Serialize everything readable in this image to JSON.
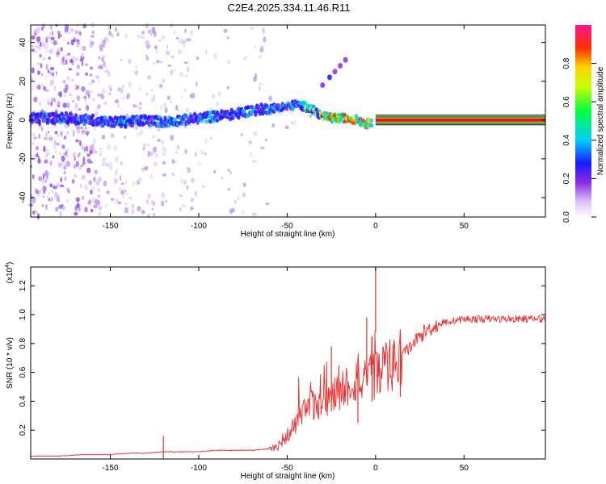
{
  "title": "C2E4.2025.334.11.46.R11",
  "colors": {
    "snr_line": "#ee2c2c",
    "band_core": "#e8102a",
    "band_edge": "#19a03c",
    "axis": "#000000"
  },
  "chart_data": [
    {
      "type": "heatmap",
      "name": "spectrogram",
      "xlabel": "Height of straight line (km)",
      "ylabel": "Frequency (Hz)",
      "xlim": [
        -195,
        96
      ],
      "ylim": [
        -50,
        49
      ],
      "xticks": [
        -150,
        -100,
        -50,
        0,
        50
      ],
      "yticks": [
        -40,
        -20,
        0,
        20,
        40
      ],
      "ridge": {
        "x": [
          -195,
          -175,
          -160,
          -150,
          -140,
          -130,
          -120,
          -110,
          -100,
          -90,
          -80,
          -70,
          -60,
          -50,
          -45,
          -40,
          -35,
          -30,
          -25,
          -20,
          -15,
          -10,
          -5,
          0,
          96
        ],
        "freq": [
          1,
          1,
          0,
          -1,
          -1,
          0,
          -1,
          0,
          1,
          2,
          3,
          5,
          6,
          7,
          8,
          7,
          5,
          2,
          1,
          1,
          1,
          0,
          -2,
          0,
          0
        ]
      },
      "branch": {
        "x": [
          -30,
          -26,
          -23,
          -20,
          -17
        ],
        "freq": [
          18,
          22,
          25,
          28,
          31
        ]
      },
      "colorbar": {
        "label": "Normalized spectral amplitude",
        "range": [
          0,
          1
        ],
        "ticks": [
          "0.0",
          "0.2",
          "0.4",
          "0.6",
          "0.8"
        ]
      }
    },
    {
      "type": "line",
      "name": "snr",
      "xlabel": "Height of straight line (km)",
      "ylabel": "SNR (10 * v/v)",
      "scale_label": "(x10",
      "scale_exp": "4",
      "xlim": [
        -195,
        96
      ],
      "ylim": [
        0,
        1.33
      ],
      "xticks": [
        -150,
        -100,
        -50,
        0,
        50
      ],
      "yticks": [
        "0.2",
        "0.4",
        "0.6",
        "0.8",
        "1.0",
        "1.2"
      ],
      "series": [
        {
          "name": "SNR",
          "x": [
            -195,
            -180,
            -165,
            -150,
            -140,
            -130,
            -120,
            -110,
            -100,
            -90,
            -80,
            -70,
            -60,
            -55,
            -50,
            -45,
            -40,
            -35,
            -30,
            -25,
            -20,
            -15,
            -10,
            -5,
            0,
            5,
            10,
            15,
            20,
            25,
            30,
            35,
            40,
            45,
            50,
            60,
            70,
            80,
            96
          ],
          "values": [
            0.02,
            0.02,
            0.03,
            0.03,
            0.04,
            0.04,
            0.05,
            0.05,
            0.05,
            0.06,
            0.06,
            0.06,
            0.07,
            0.1,
            0.16,
            0.24,
            0.32,
            0.38,
            0.4,
            0.43,
            0.48,
            0.52,
            0.55,
            0.52,
            0.6,
            0.62,
            0.65,
            0.72,
            0.78,
            0.85,
            0.9,
            0.93,
            0.95,
            0.96,
            0.97,
            0.97,
            0.97,
            0.97,
            0.97
          ]
        }
      ],
      "peaks": [
        {
          "x": 0,
          "value": 1.33
        },
        {
          "x": -5,
          "value": 0.98
        },
        {
          "x": -2,
          "value": 0.85
        },
        {
          "x": -25,
          "value": 0.78
        },
        {
          "x": -10,
          "value": 0.7
        },
        {
          "x": 14,
          "value": 0.88
        },
        {
          "x": -120,
          "value": 0.16
        }
      ]
    }
  ]
}
